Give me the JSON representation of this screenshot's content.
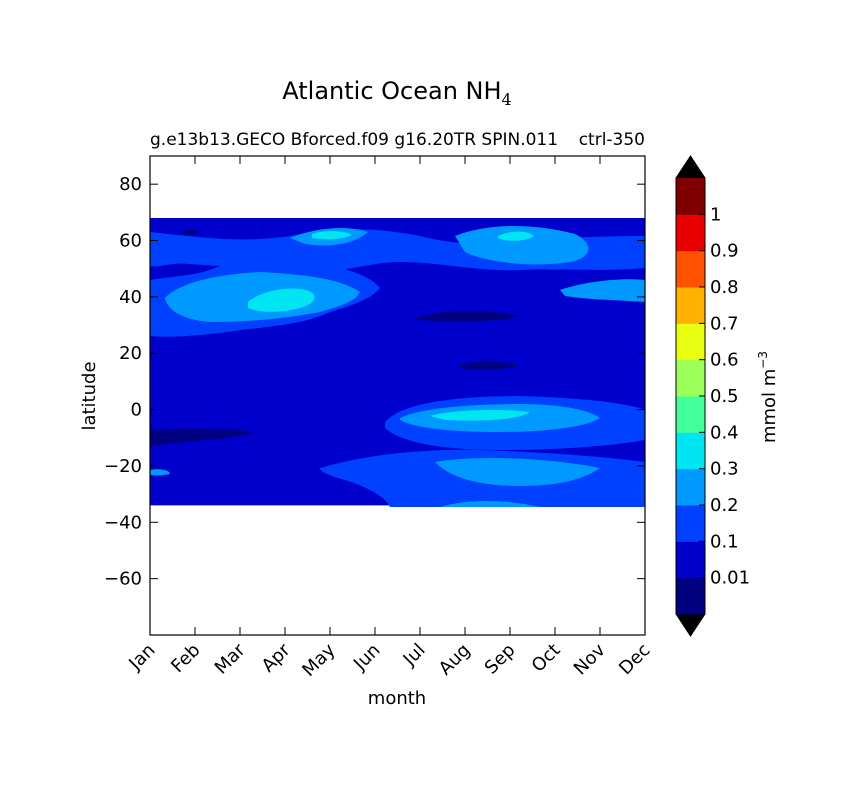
{
  "chart_data": {
    "type": "heatmap",
    "title": "Atlantic Ocean NH",
    "title_subscript": "4",
    "subtitle_left": "g.e13b13.GECO Bforced.f09 g16.20TR SPIN.011",
    "subtitle_right": "ctrl-350",
    "xlabel": "month",
    "ylabel": "latitude",
    "x_categories": [
      "Jan",
      "Feb",
      "Mar",
      "Apr",
      "May",
      "Jun",
      "Jul",
      "Aug",
      "Sep",
      "Oct",
      "Nov",
      "Dec"
    ],
    "ylim": [
      -80,
      90
    ],
    "data_ylim": [
      -34,
      68
    ],
    "y_ticks": [
      80,
      60,
      40,
      20,
      0,
      -20,
      -40,
      -60
    ],
    "y_tick_labels": [
      "80",
      "60",
      "40",
      "20",
      "0",
      "−20",
      "−40",
      "−60"
    ],
    "colorbar": {
      "label": "mmol m",
      "label_exponent": "−3",
      "extend": "both",
      "tick_labels": [
        "0.01",
        "0.1",
        "0.2",
        "0.3",
        "0.4",
        "0.5",
        "0.6",
        "0.7",
        "0.8",
        "0.9",
        "1"
      ],
      "colors": [
        "#000080",
        "#0000cd",
        "#0040ff",
        "#0099ff",
        "#00e5f2",
        "#43ff9a",
        "#9cff5a",
        "#e8ff12",
        "#ffb000",
        "#ff5200",
        "#e80000",
        "#800000"
      ],
      "extend_low_color": "#000000",
      "extend_high_color": "#000000"
    },
    "field_levels": {
      "background": 1,
      "regions": [
        {
          "name": "north-subpolar-band",
          "level": 2
        },
        {
          "name": "north-atlantic-gyre-edge",
          "level": 2
        },
        {
          "name": "spring-bloom-patch",
          "level": 3
        },
        {
          "name": "spring-bloom-core",
          "level": 4
        },
        {
          "name": "summer-subpolar-patch",
          "level": 3
        },
        {
          "name": "summer-subpolar-core",
          "level": 4
        },
        {
          "name": "equatorial-band",
          "level": 2
        },
        {
          "name": "equatorial-core",
          "level": 3
        },
        {
          "name": "equatorial-peak",
          "level": 4
        },
        {
          "name": "south-band",
          "level": 2
        },
        {
          "name": "south-core",
          "level": 3
        },
        {
          "name": "low-pocket-north",
          "level": 0
        },
        {
          "name": "low-pocket-mid",
          "level": 0
        },
        {
          "name": "low-pocket-west",
          "level": 0
        }
      ]
    }
  }
}
